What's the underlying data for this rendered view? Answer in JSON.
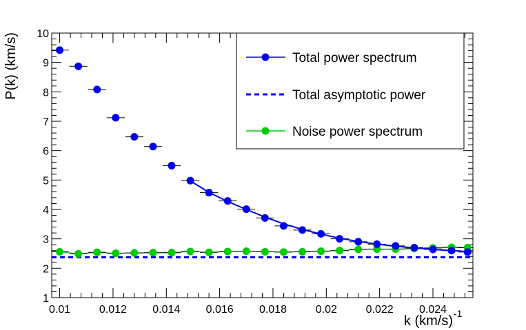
{
  "chart_data": {
    "type": "scatter",
    "title": "",
    "xlabel": "k  (km/s)",
    "xlabel_exponent": "-1",
    "ylabel": "P(k)  (km/s)",
    "xlim": [
      0.0097,
      0.0255
    ],
    "ylim": [
      1,
      10
    ],
    "xticks": [
      0.01,
      0.012,
      0.014,
      0.016,
      0.018,
      0.02,
      0.022,
      0.024
    ],
    "xtick_labels": [
      "0.01",
      "0.012",
      "0.014",
      "0.016",
      "0.018",
      "0.02",
      "0.022",
      "0.024"
    ],
    "yticks": [
      1,
      2,
      3,
      4,
      5,
      6,
      7,
      8,
      9,
      10
    ],
    "ytick_labels": [
      "1",
      "2",
      "3",
      "4",
      "5",
      "6",
      "7",
      "8",
      "9",
      "10"
    ],
    "x_bin_halfwidth": 0.00034,
    "x": [
      0.01,
      0.0107,
      0.0114,
      0.0121,
      0.0128,
      0.0135,
      0.0142,
      0.0149,
      0.0156,
      0.0163,
      0.017,
      0.0177,
      0.0184,
      0.0191,
      0.0198,
      0.0205,
      0.0212,
      0.0219,
      0.0226,
      0.0233,
      0.024,
      0.0247,
      0.0253
    ],
    "series": [
      {
        "name": "Total power spectrum",
        "color": "#0000ee",
        "marker": "circle",
        "values": [
          9.42,
          8.87,
          8.08,
          7.12,
          6.47,
          6.14,
          5.49,
          4.98,
          4.57,
          4.29,
          4.01,
          3.71,
          3.44,
          3.3,
          3.17,
          3.0,
          2.9,
          2.82,
          2.76,
          2.7,
          2.64,
          2.6,
          2.55
        ]
      },
      {
        "name": "Noise power spectrum",
        "color": "#00cc00",
        "marker": "circle",
        "values": [
          2.56,
          2.49,
          2.54,
          2.51,
          2.52,
          2.53,
          2.53,
          2.57,
          2.54,
          2.57,
          2.58,
          2.56,
          2.55,
          2.56,
          2.58,
          2.6,
          2.64,
          2.65,
          2.65,
          2.67,
          2.69,
          2.71,
          2.7
        ]
      }
    ],
    "fit_curve": {
      "name": "Total power spectrum",
      "color": "#0000ee",
      "x": [
        0.0149,
        0.0156,
        0.0163,
        0.017,
        0.0177,
        0.0184,
        0.0191,
        0.0198,
        0.0205,
        0.0212,
        0.0219,
        0.0226,
        0.0233,
        0.024,
        0.0247,
        0.0254
      ],
      "values": [
        4.97,
        4.58,
        4.27,
        4.0,
        3.74,
        3.51,
        3.32,
        3.16,
        3.02,
        2.91,
        2.82,
        2.75,
        2.69,
        2.64,
        2.6,
        2.56
      ]
    },
    "asymptote": {
      "name": "Total asymptotic power",
      "color": "#0000ee",
      "style": "dashed",
      "value": 2.37
    },
    "legend": {
      "placement": "top-right",
      "entries": [
        "Total power spectrum",
        "Total asymptotic power",
        "Noise power spectrum"
      ]
    }
  }
}
